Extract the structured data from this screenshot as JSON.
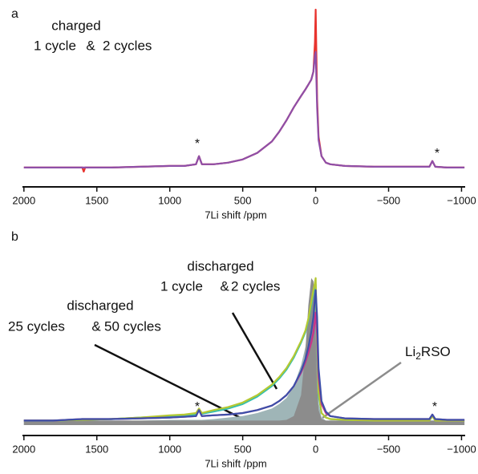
{
  "chart_data": [
    {
      "type": "line",
      "panel": "a",
      "xlabel": "7Li shift /ppm",
      "xlim": [
        2010,
        -1025
      ],
      "ylim": [
        0,
        100
      ],
      "xticks": [
        2000,
        1500,
        1000,
        500,
        0,
        {
          "value": -500,
          "label": "−500"
        },
        {
          "value": -1000,
          "label": "−1000"
        }
      ],
      "x": [
        2000,
        1800,
        1600,
        1590,
        1580,
        1400,
        1200,
        1000,
        900,
        820,
        800,
        780,
        700,
        600,
        500,
        400,
        300,
        250,
        200,
        150,
        100,
        70,
        50,
        30,
        15,
        5,
        0,
        -10,
        -20,
        -40,
        -70,
        -100,
        -200,
        -400,
        -600,
        -780,
        -800,
        -820,
        -900,
        -1000,
        -1020
      ],
      "annotations": [
        "charged",
        "&",
        "*",
        "*"
      ],
      "series": [
        {
          "name": "1 cycle",
          "color": "#e8332e",
          "values": [
            3,
            3,
            3,
            0.5,
            3,
            3,
            3.5,
            4,
            4,
            5,
            10,
            5,
            5,
            6,
            8,
            12,
            19,
            25,
            32,
            40,
            47,
            51,
            54,
            57,
            62,
            80,
            100,
            45,
            22,
            10,
            6,
            5,
            4,
            3.5,
            3.5,
            3.5,
            7,
            3.5,
            3,
            3,
            3
          ]
        },
        {
          "name": "2 cycles",
          "color": "#8e4fa8",
          "values": [
            3,
            3,
            3,
            3,
            3,
            3,
            3.5,
            4,
            4,
            5,
            10,
            5,
            5,
            6,
            8,
            12,
            19,
            25,
            32,
            40,
            47,
            51,
            54,
            57,
            62,
            72,
            74,
            40,
            20,
            10,
            6,
            5,
            4,
            3.5,
            3.5,
            3.5,
            7,
            3.5,
            3,
            3,
            3
          ]
        }
      ]
    },
    {
      "type": "line",
      "panel": "b",
      "xlabel": "7Li shift /ppm",
      "xlim": [
        2010,
        -1025
      ],
      "ylim": [
        0,
        100
      ],
      "xticks": [
        2000,
        1500,
        1000,
        500,
        0,
        {
          "value": -500,
          "label": "−500"
        },
        {
          "value": -1000,
          "label": "−1000"
        }
      ],
      "x": [
        2000,
        1800,
        1600,
        1590,
        1580,
        1400,
        1200,
        1000,
        900,
        820,
        800,
        780,
        700,
        600,
        500,
        400,
        300,
        250,
        200,
        150,
        100,
        70,
        50,
        30,
        15,
        5,
        0,
        -10,
        -20,
        -40,
        -70,
        -100,
        -200,
        -400,
        -600,
        -780,
        -800,
        -820,
        -900,
        -1000,
        -1020
      ],
      "annotations": [
        "discharged",
        "&",
        "discharged",
        "&",
        "*",
        "*"
      ],
      "callout": [
        "Li",
        "2",
        "RSO"
      ],
      "series": [
        {
          "color": "#9fb5b7",
          "fill": true,
          "values": [
            3,
            3,
            3,
            3,
            3,
            3,
            3,
            3.5,
            3.5,
            3.5,
            3.5,
            3.5,
            4,
            5,
            6,
            8,
            11,
            14,
            18,
            26,
            40,
            52,
            65,
            80,
            88,
            90,
            85,
            45,
            15,
            5,
            3,
            3,
            3,
            3,
            3,
            3,
            3,
            3,
            3,
            3,
            3
          ]
        },
        {
          "color": "#8c8c8c",
          "fill": true,
          "values": [
            3,
            3,
            3,
            3,
            3,
            3,
            3,
            3,
            3,
            3,
            3,
            3,
            3,
            3,
            3,
            3,
            3,
            3,
            3.5,
            6,
            20,
            50,
            80,
            98,
            96,
            80,
            60,
            25,
            10,
            4,
            3,
            3,
            3,
            3,
            3,
            3,
            3,
            3,
            3,
            3,
            3
          ]
        },
        {
          "name": "1 cycle",
          "color": "#35bfae",
          "values": [
            3,
            3,
            3.5,
            3.5,
            3.5,
            4,
            5,
            6,
            6.5,
            7,
            10,
            7.5,
            9,
            11,
            14,
            19,
            26,
            31,
            37,
            45,
            55,
            62,
            70,
            80,
            88,
            92,
            94,
            50,
            20,
            8,
            5,
            4,
            3.5,
            3,
            3,
            3,
            6,
            3,
            3,
            3,
            3
          ]
        },
        {
          "name": "2 cycles",
          "color": "#b5c832",
          "values": [
            3,
            3,
            3.5,
            3.5,
            3.5,
            4,
            5,
            6.5,
            7,
            8,
            11,
            8,
            10,
            12,
            15,
            20,
            27,
            32,
            38,
            46,
            56,
            63,
            71,
            82,
            90,
            95,
            98,
            55,
            22,
            8,
            5,
            4,
            3.5,
            3,
            3,
            3,
            6,
            3,
            3,
            3,
            3
          ]
        },
        {
          "name": "25 cycles",
          "color": "#c8338a",
          "values": [
            3,
            3,
            4,
            4,
            4,
            4,
            4.5,
            5,
            5.5,
            6,
            10,
            6,
            6.5,
            7,
            8,
            10,
            13,
            16,
            20,
            26,
            35,
            42,
            48,
            55,
            62,
            70,
            75,
            60,
            32,
            14,
            8,
            6,
            4.5,
            4,
            4,
            4,
            7,
            4,
            3.5,
            3.5,
            3.5
          ]
        },
        {
          "name": "50 cycles",
          "color": "#3d4fa8",
          "values": [
            3,
            3,
            4,
            4,
            4,
            4,
            4.5,
            5,
            5.5,
            6,
            10,
            6,
            6.5,
            7,
            8,
            10,
            13,
            16,
            20,
            26,
            36,
            44,
            52,
            62,
            72,
            85,
            90,
            72,
            38,
            16,
            9,
            6,
            4.5,
            4,
            4,
            4,
            7,
            4,
            3.5,
            3.5,
            3.5
          ]
        }
      ]
    }
  ]
}
